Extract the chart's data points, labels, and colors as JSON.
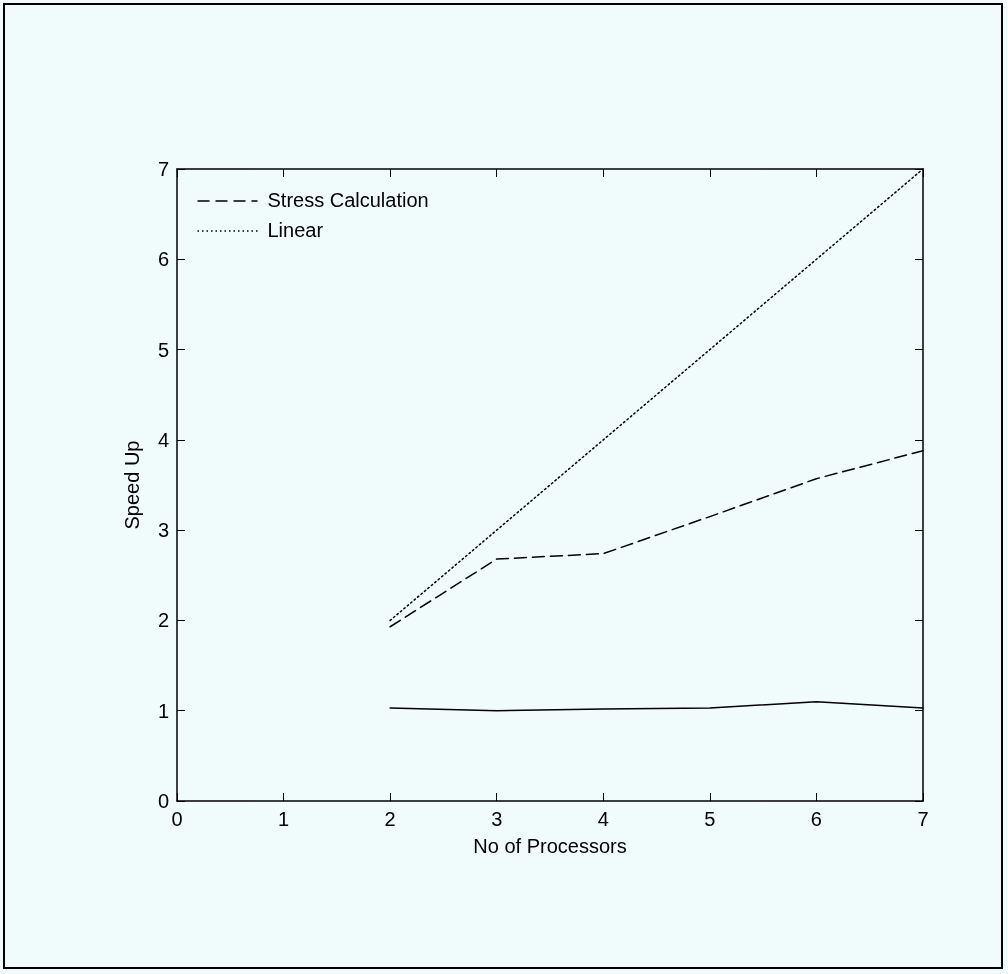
{
  "chart_data": {
    "type": "line",
    "xlabel": "No of Processors",
    "ylabel": "Speed Up",
    "xlim": [
      0,
      7
    ],
    "xticks": [
      0,
      1,
      2,
      3,
      4,
      5,
      6,
      7
    ],
    "ylim": [
      0,
      7
    ],
    "yticks": [
      0,
      1,
      2,
      3,
      4,
      5,
      6,
      7
    ],
    "x": [
      2,
      3,
      4,
      5,
      6,
      7
    ],
    "legend": "top left",
    "marker": "none",
    "grid": false,
    "series": [
      {
        "color": "#000000",
        "line_style": "solid",
        "values": [
          1.03,
          1.0,
          1.02,
          1.03,
          1.1,
          1.03
        ]
      },
      {
        "name": "Stress Calculation",
        "color": "#000000",
        "line_style": "dashed",
        "values": [
          1.93,
          2.68,
          2.74,
          3.15,
          3.57,
          3.88
        ]
      },
      {
        "name": "Linear",
        "color": "#000000",
        "line_style": "dotted",
        "values": [
          2,
          3,
          4,
          5,
          6,
          7
        ]
      }
    ]
  }
}
